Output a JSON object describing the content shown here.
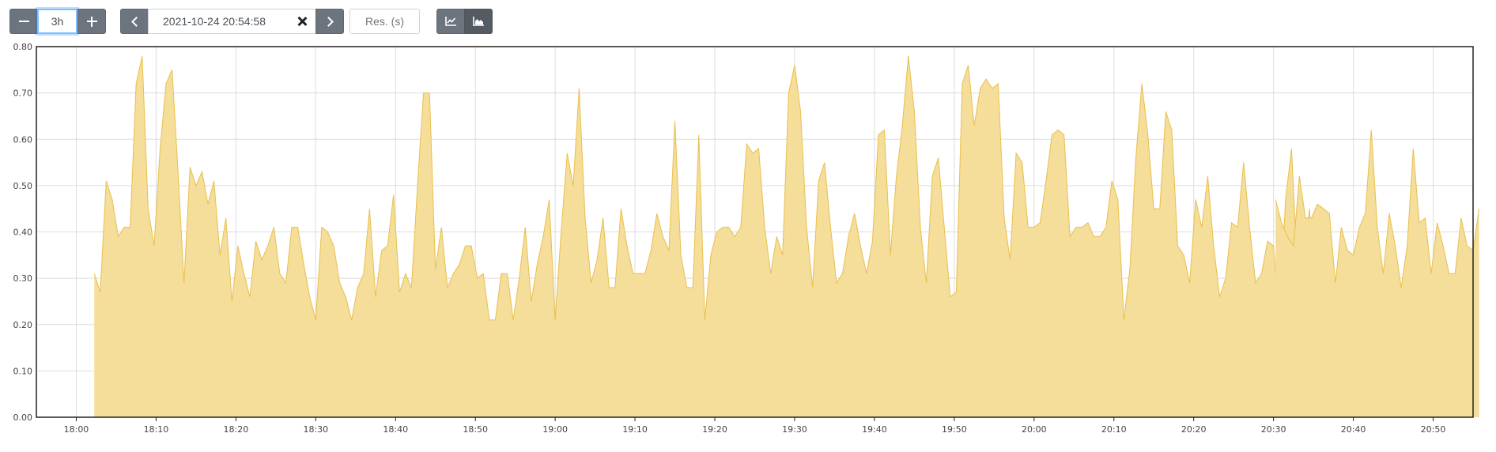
{
  "toolbar": {
    "range_minus_icon": "minus-icon",
    "range_value": "3h",
    "range_plus_icon": "plus-icon",
    "prev_icon": "chevron-left-icon",
    "end_time": "2021-10-24 20:54:58",
    "clear_icon": "close-icon",
    "next_icon": "chevron-right-icon",
    "resolution_placeholder": "Res. (s)",
    "mode_line_icon": "line-chart-icon",
    "mode_stacked_icon": "area-chart-icon"
  },
  "chart_data": {
    "type": "area",
    "color": "#f5dd9a",
    "line_color": "#e8c04e",
    "ylim": [
      0,
      0.8
    ],
    "yticks": [
      "0.00",
      "0.10",
      "0.20",
      "0.30",
      "0.40",
      "0.50",
      "0.60",
      "0.70",
      "0.80"
    ],
    "xticks": [
      "18:00",
      "18:10",
      "18:20",
      "18:30",
      "18:40",
      "18:50",
      "19:00",
      "19:10",
      "19:20",
      "19:30",
      "19:40",
      "19:50",
      "20:00",
      "20:10",
      "20:20",
      "20:30",
      "20:40",
      "20:50"
    ],
    "x_start": "17:55:00",
    "x_end": "20:55:00",
    "grid": true,
    "series": [
      {
        "x_start": "18:02:15",
        "x_step_seconds": 45,
        "values": [
          0.31,
          0.27,
          0.51,
          0.47,
          0.39,
          0.41,
          0.41,
          0.72,
          0.78,
          0.45,
          0.37,
          0.58,
          0.72,
          0.75,
          0.53,
          0.29,
          0.54,
          0.5,
          0.53,
          0.46,
          0.51,
          0.35,
          0.43,
          0.25,
          0.37,
          0.31,
          0.26,
          0.38,
          0.34,
          0.37,
          0.41,
          0.31,
          0.29,
          0.41,
          0.41,
          0.33,
          0.26,
          0.21,
          0.41,
          0.4,
          0.37,
          0.29,
          0.26,
          0.21,
          0.28,
          0.31,
          0.45,
          0.26,
          0.36,
          0.37,
          0.48,
          0.27,
          0.31,
          0.28,
          0.5,
          0.7,
          0.7,
          0.32,
          0.41,
          0.28,
          0.31,
          0.33,
          0.37,
          0.37,
          0.3,
          0.31,
          0.21,
          0.21,
          0.31,
          0.31,
          0.21,
          0.3,
          0.41,
          0.25,
          0.33,
          0.39,
          0.47,
          0.21,
          0.4,
          0.57,
          0.5,
          0.71,
          0.43,
          0.29,
          0.34,
          0.43,
          0.28,
          0.28,
          0.45,
          0.37,
          0.31,
          0.31,
          0.31,
          0.36,
          0.44,
          0.39,
          0.36,
          0.64,
          0.35,
          0.28,
          0.28,
          0.61,
          0.21,
          0.35,
          0.4,
          0.41,
          0.41,
          0.39,
          0.41,
          0.59,
          0.57,
          0.58,
          0.41,
          0.31,
          0.39,
          0.35,
          0.7,
          0.76,
          0.66,
          0.41,
          0.28,
          0.51,
          0.55,
          0.41,
          0.29,
          0.31,
          0.39,
          0.44,
          0.37,
          0.31,
          0.38,
          0.61,
          0.62,
          0.35,
          0.52,
          0.63,
          0.78,
          0.66,
          0.41,
          0.29,
          0.52,
          0.56,
          0.41,
          0.26,
          0.27,
          0.72,
          0.76,
          0.63,
          0.71,
          0.73,
          0.71,
          0.72,
          0.43,
          0.34,
          0.57,
          0.55,
          0.41,
          0.41,
          0.42,
          0.51,
          0.61,
          0.62,
          0.61,
          0.39,
          0.41,
          0.41,
          0.42,
          0.39,
          0.39,
          0.41,
          0.51,
          0.47,
          0.21,
          0.32,
          0.56,
          0.72,
          0.61,
          0.45,
          0.45,
          0.66,
          0.62,
          0.37,
          0.35,
          0.29,
          0.47,
          0.41,
          0.52,
          0.37,
          0.26,
          0.3,
          0.42,
          0.41,
          0.55,
          0.41,
          0.29,
          0.31,
          0.38,
          0.37,
          0.21,
          0.47,
          0.58,
          0.31,
          0.31,
          0.45,
          0.21,
          0.31
        ]
      },
      {
        "x_start": "20:30:15",
        "x_step_seconds": 45,
        "values": [
          0.47,
          0.42,
          0.39,
          0.37,
          0.52,
          0.43,
          0.43,
          0.46,
          0.45,
          0.44,
          0.29,
          0.41,
          0.36,
          0.35,
          0.41,
          0.44,
          0.62,
          0.41,
          0.31,
          0.44,
          0.37,
          0.28,
          0.37,
          0.58,
          0.42,
          0.43,
          0.31,
          0.42,
          0.37,
          0.31,
          0.31,
          0.43,
          0.37,
          0.36,
          0.45
        ]
      }
    ]
  }
}
